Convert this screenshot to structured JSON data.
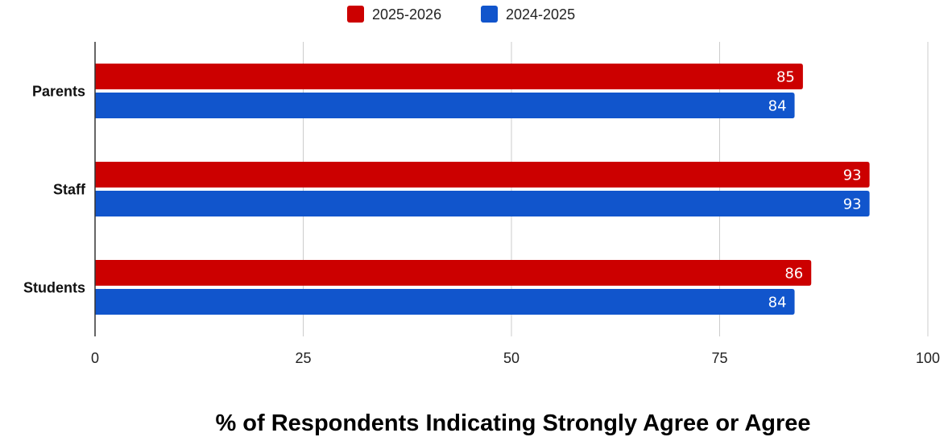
{
  "chart_data": {
    "type": "bar",
    "orientation": "horizontal",
    "categories": [
      "Parents",
      "Staff",
      "Students"
    ],
    "series": [
      {
        "name": "2025-2026",
        "color": "#cc0000",
        "values": [
          85,
          93,
          86
        ]
      },
      {
        "name": "2024-2025",
        "color": "#1155cc",
        "values": [
          84,
          93,
          84
        ]
      }
    ],
    "xlabel": "% of Respondents Indicating Strongly Agree or Agree",
    "xlim": [
      0,
      100
    ],
    "xticks": [
      0,
      25,
      50,
      75,
      100
    ],
    "grid": true,
    "legend_position": "top-center",
    "data_labels": true
  }
}
